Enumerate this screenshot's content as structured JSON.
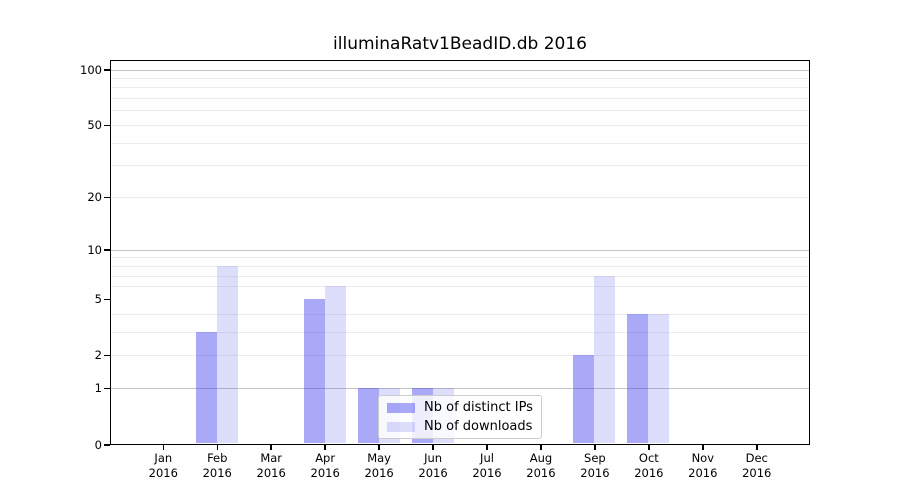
{
  "chart_data": {
    "type": "bar",
    "title": "illuminaRatv1BeadID.db 2016",
    "x": {
      "months": [
        "Jan",
        "Feb",
        "Mar",
        "Apr",
        "May",
        "Jun",
        "Jul",
        "Aug",
        "Sep",
        "Oct",
        "Nov",
        "Dec"
      ],
      "year": "2016"
    },
    "series": [
      {
        "name": "Nb of distinct IPs",
        "color": "rgba(65,65,240,0.45)",
        "values": [
          0,
          3,
          0,
          5,
          1,
          1,
          0,
          0,
          2,
          4,
          0,
          0
        ]
      },
      {
        "name": "Nb of downloads",
        "color": "rgba(65,65,240,0.18)",
        "values": [
          0,
          8,
          0,
          6,
          1,
          1,
          0,
          0,
          7,
          4,
          0,
          0
        ]
      }
    ],
    "y_axis": {
      "scale": "log10(1+x)",
      "min": 0,
      "max": 100,
      "tick_labels": [
        0,
        1,
        2,
        5,
        10,
        20,
        50,
        100
      ],
      "major_gridlines": [
        1,
        10,
        100
      ],
      "minor_gridlines": [
        2,
        3,
        4,
        6,
        7,
        8,
        9,
        20,
        30,
        40,
        50,
        60,
        70,
        80,
        90
      ]
    },
    "grid": true,
    "legend": {
      "position": "inside-bottom-center"
    }
  },
  "colors": {
    "background": "#ffffff",
    "spine": "#000000",
    "text": "#000000",
    "grid_major": "#c4c4c4",
    "grid_minor": "#ececec",
    "legend_border": "#cccccc",
    "legend_bg": "rgba(255,255,255,0.8)"
  }
}
